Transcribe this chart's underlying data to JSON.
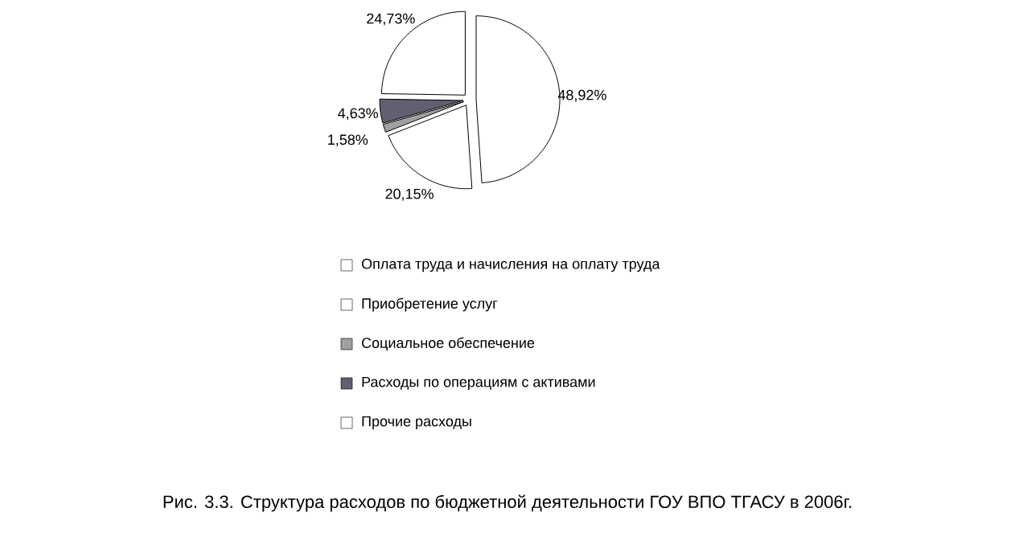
{
  "chart_data": {
    "type": "pie",
    "title": "Рис. 3.3. Структура расходов по бюджетной деятельности ГОУ ВПО ТГАСУ в 2006г.",
    "categories": [
      "Оплата труда и начисления на оплату труда",
      "Приобретение услуг",
      "Социальное обеспечение",
      "Расходы по операциям с активами",
      "Прочие расходы"
    ],
    "values": [
      48.92,
      20.15,
      1.58,
      4.63,
      24.73
    ],
    "value_labels": [
      "48,92%",
      "20,15%",
      "1,58%",
      "4,63%",
      "24,73%"
    ],
    "colors": [
      "#ffffff",
      "#ffffff",
      "#a0a0a0",
      "#606070",
      "#ffffff"
    ],
    "legend": "bottom"
  }
}
